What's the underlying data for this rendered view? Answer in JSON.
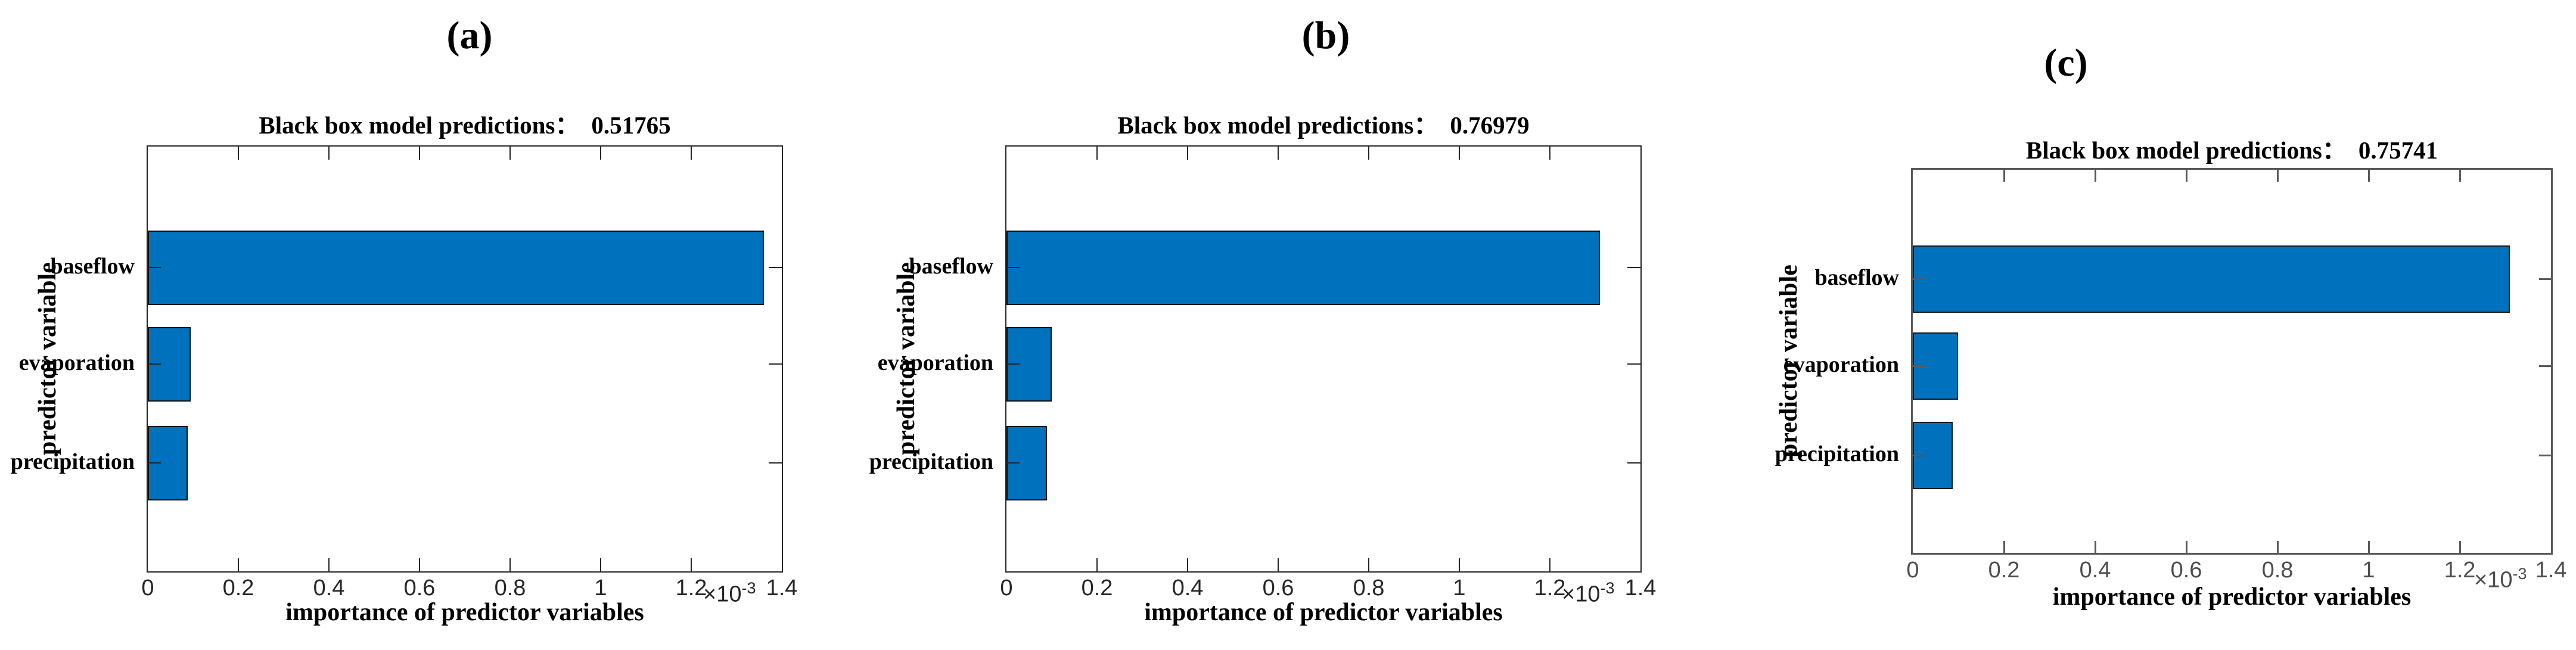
{
  "figure": {
    "description_title": "Black box model predictions bar charts",
    "bar_color": "#0072BD",
    "bar_edge_color": "#111111",
    "axis_color_ab": "#262626",
    "axis_color_c": "#595959"
  },
  "chart_data": [
    {
      "type": "bar",
      "orientation": "horizontal",
      "panel_label": "(a)",
      "title": "Black box model predictions：",
      "black_box_prediction": "0.51765",
      "categories": [
        "baseflow",
        "evaporation",
        "precipitation"
      ],
      "values": [
        0.00136,
        9.5e-05,
        8.8e-05
      ],
      "xlim": [
        0,
        0.0014
      ],
      "x_tick_labels": [
        "0",
        "0.2",
        "0.4",
        "0.6",
        "0.8",
        "1",
        "1.2",
        "1.4"
      ],
      "xlabel": "importance of predictor variables",
      "ylabel": "predictor variable",
      "axis_multiplier_base": "×10",
      "axis_multiplier_exponent": "-3",
      "bar_color": "#0072BD",
      "legend": "none",
      "grid": "off"
    },
    {
      "type": "bar",
      "orientation": "horizontal",
      "panel_label": "(b)",
      "title": "Black box model predictions：",
      "black_box_prediction": "0.76979",
      "categories": [
        "baseflow",
        "evaporation",
        "precipitation"
      ],
      "values": [
        0.00131,
        0.0001,
        9e-05
      ],
      "xlim": [
        0,
        0.0014
      ],
      "x_tick_labels": [
        "0",
        "0.2",
        "0.4",
        "0.6",
        "0.8",
        "1",
        "1.2",
        "1.4"
      ],
      "xlabel": "importance of predictor variables",
      "ylabel": "predictor variable",
      "axis_multiplier_base": "×10",
      "axis_multiplier_exponent": "-3",
      "bar_color": "#0072BD",
      "legend": "none",
      "grid": "off"
    },
    {
      "type": "bar",
      "orientation": "horizontal",
      "panel_label": "(c)",
      "title": "Black box model predictions：",
      "black_box_prediction": "0.75741",
      "categories": [
        "baseflow",
        "evaporation",
        "precipitation"
      ],
      "values": [
        0.00131,
        9.9e-05,
        8.8e-05
      ],
      "xlim": [
        0,
        0.0014
      ],
      "x_tick_labels": [
        "0",
        "0.2",
        "0.4",
        "0.6",
        "0.8",
        "1",
        "1.2",
        "1.4"
      ],
      "xlabel": "importance of predictor variables",
      "ylabel": "predictor variable",
      "axis_multiplier_base": "×10",
      "axis_multiplier_exponent": "-3",
      "bar_color": "#0072BD",
      "legend": "none",
      "grid": "off"
    }
  ]
}
